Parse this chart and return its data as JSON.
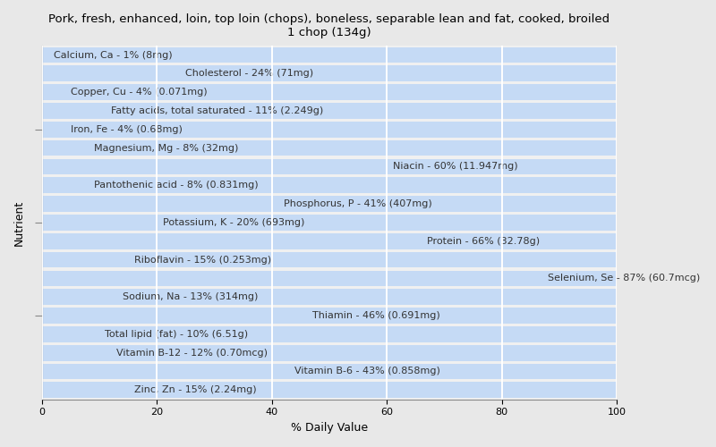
{
  "title": "Pork, fresh, enhanced, loin, top loin (chops), boneless, separable lean and fat, cooked, broiled\n1 chop (134g)",
  "xlabel": "% Daily Value",
  "ylabel": "Nutrient",
  "background_color": "#e8e8e8",
  "plot_background_color": "#f0f0f0",
  "bar_color": "#c5daf5",
  "bar_edge_color": "#c5daf5",
  "xlim": [
    0,
    100
  ],
  "xticks": [
    0,
    20,
    40,
    60,
    80,
    100
  ],
  "nutrients": [
    "Calcium, Ca - 1% (8mg)",
    "Cholesterol - 24% (71mg)",
    "Copper, Cu - 4% (0.071mg)",
    "Fatty acids, total saturated - 11% (2.249g)",
    "Iron, Fe - 4% (0.68mg)",
    "Magnesium, Mg - 8% (32mg)",
    "Niacin - 60% (11.947mg)",
    "Pantothenic acid - 8% (0.831mg)",
    "Phosphorus, P - 41% (407mg)",
    "Potassium, K - 20% (693mg)",
    "Protein - 66% (32.78g)",
    "Riboflavin - 15% (0.253mg)",
    "Selenium, Se - 87% (60.7mcg)",
    "Sodium, Na - 13% (314mg)",
    "Thiamin - 46% (0.691mg)",
    "Total lipid (fat) - 10% (6.51g)",
    "Vitamin B-12 - 12% (0.70mcg)",
    "Vitamin B-6 - 43% (0.858mg)",
    "Zinc, Zn - 15% (2.24mg)"
  ],
  "values": [
    1,
    24,
    4,
    11,
    4,
    8,
    60,
    8,
    41,
    20,
    66,
    15,
    87,
    13,
    46,
    10,
    12,
    43,
    15
  ],
  "title_fontsize": 9.5,
  "label_fontsize": 8,
  "axis_label_fontsize": 9
}
